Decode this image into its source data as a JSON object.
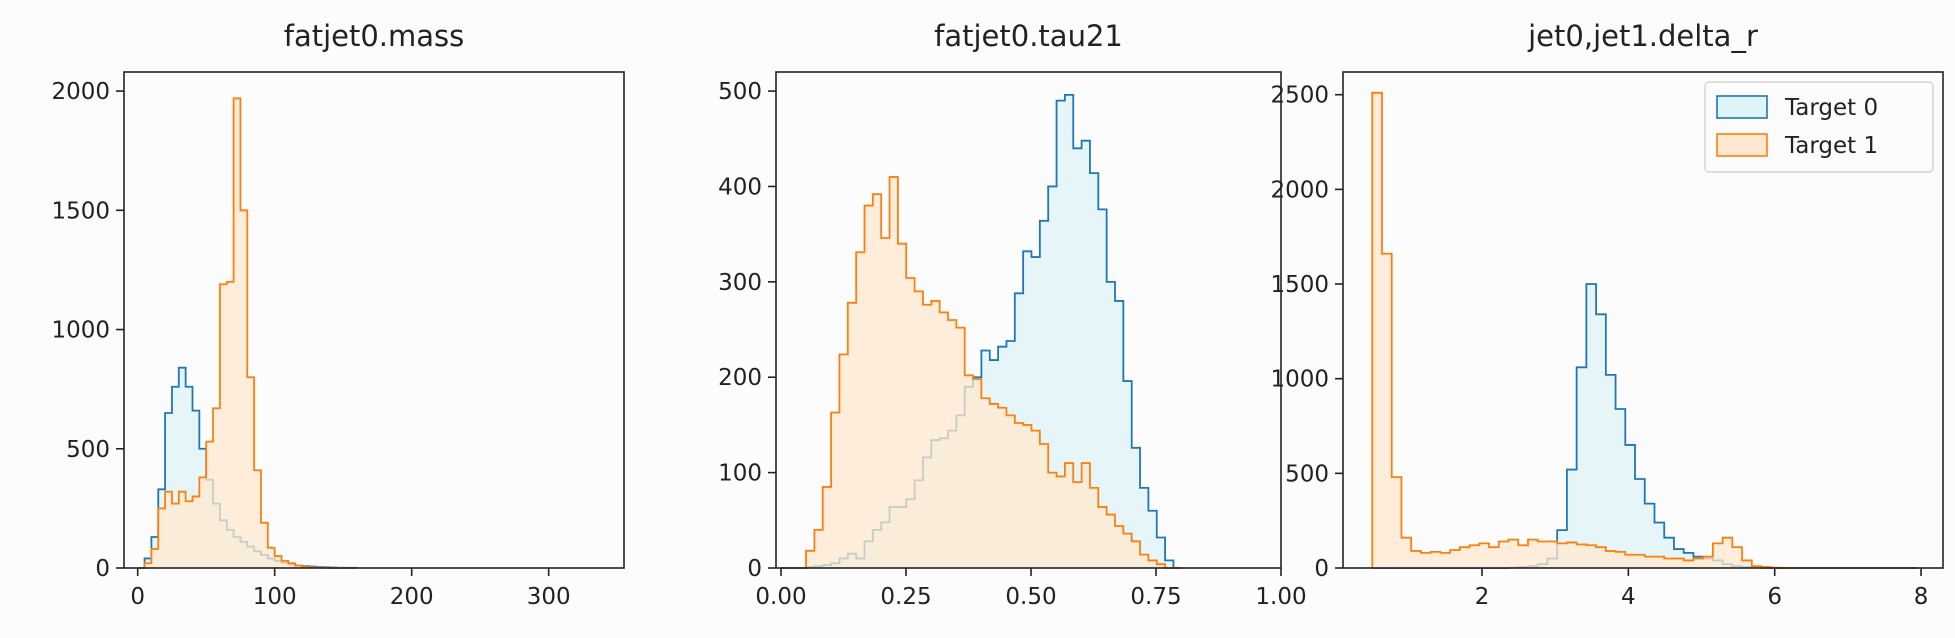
{
  "colors": {
    "target0": "#1f77b4",
    "target1": "#ff7f0e",
    "target0_fill": "#dff4f7",
    "target1_fill": "#ffe8cf",
    "background": "#fcfcfc"
  },
  "chart_data": [
    {
      "type": "histogram",
      "title": "fatjet0.mass",
      "xlim": [
        -10,
        355
      ],
      "ylim": [
        0,
        2080
      ],
      "xticks": [
        0,
        100,
        200,
        300
      ],
      "xticklabels": [
        "0",
        "100",
        "200",
        "300"
      ],
      "yticks": [
        0,
        500,
        1000,
        1500,
        2000
      ],
      "yticklabels": [
        "0",
        "500",
        "1000",
        "1500",
        "2000"
      ],
      "series": [
        {
          "name": "Target 0",
          "bin_start": 0,
          "bin_width": 5,
          "values": [
            0,
            40,
            130,
            330,
            650,
            760,
            840,
            760,
            660,
            500,
            370,
            270,
            200,
            160,
            130,
            110,
            90,
            70,
            55,
            40,
            30,
            22,
            15,
            10,
            8,
            6,
            4,
            3,
            2,
            1,
            1,
            1
          ]
        },
        {
          "name": "Target 1",
          "bin_start": 0,
          "bin_width": 5,
          "values": [
            0,
            20,
            80,
            250,
            320,
            270,
            320,
            280,
            300,
            380,
            530,
            670,
            1190,
            1200,
            1970,
            1500,
            800,
            410,
            190,
            85,
            50,
            30,
            20,
            10,
            5,
            3,
            2,
            1,
            0,
            0,
            0,
            0
          ]
        }
      ],
      "legend": null
    },
    {
      "type": "histogram",
      "title": "fatjet0.tau21",
      "xlim": [
        -0.01,
        1.0
      ],
      "ylim": [
        0,
        520
      ],
      "xticks": [
        0.0,
        0.25,
        0.5,
        0.75,
        1.0
      ],
      "xticklabels": [
        "0.00",
        "0.25",
        "0.50",
        "0.75",
        "1.00"
      ],
      "yticks": [
        0,
        100,
        200,
        300,
        400,
        500
      ],
      "yticklabels": [
        "0",
        "100",
        "200",
        "300",
        "400",
        "500"
      ],
      "series": [
        {
          "name": "Target 0",
          "bin_start": 0.0,
          "bin_width": 0.0167,
          "values": [
            0,
            0,
            0,
            1,
            2,
            3,
            5,
            10,
            15,
            10,
            28,
            40,
            48,
            64,
            64,
            72,
            92,
            116,
            134,
            136,
            144,
            160,
            190,
            200,
            228,
            218,
            232,
            238,
            288,
            332,
            326,
            364,
            400,
            490,
            496,
            440,
            448,
            414,
            376,
            300,
            280,
            196,
            126,
            84,
            60,
            32,
            8,
            0
          ]
        },
        {
          "name": "Target 1",
          "bin_start": 0.0,
          "bin_width": 0.0167,
          "values": [
            0,
            0,
            0,
            18,
            40,
            85,
            163,
            224,
            278,
            331,
            380,
            392,
            346,
            410,
            340,
            304,
            290,
            276,
            280,
            268,
            260,
            252,
            202,
            198,
            178,
            172,
            168,
            160,
            152,
            150,
            144,
            130,
            100,
            96,
            110,
            90,
            110,
            84,
            64,
            56,
            44,
            36,
            28,
            14,
            8,
            4,
            0,
            0
          ]
        }
      ],
      "legend": null
    },
    {
      "type": "histogram",
      "title": "jet0,jet1.delta_r",
      "xlim": [
        0.1,
        8.3
      ],
      "ylim": [
        0,
        2620
      ],
      "xticks": [
        2,
        4,
        6,
        8
      ],
      "xticklabels": [
        "2",
        "4",
        "6",
        "8"
      ],
      "yticks": [
        0,
        500,
        1000,
        1500,
        2000,
        2500
      ],
      "yticklabels": [
        "0",
        "500",
        "1000",
        "1500",
        "2000",
        "2500"
      ],
      "series": [
        {
          "name": "Target 0",
          "bin_start": 0.5,
          "bin_width": 0.133,
          "values": [
            0,
            0,
            0,
            0,
            0,
            0,
            0,
            0,
            0,
            0,
            0,
            0,
            0,
            0,
            2,
            5,
            10,
            20,
            50,
            200,
            520,
            1060,
            1500,
            1340,
            1020,
            840,
            650,
            470,
            340,
            240,
            160,
            100,
            80,
            60,
            50,
            40,
            20,
            10,
            5,
            2,
            1,
            0,
            0,
            0,
            0,
            0,
            0,
            0,
            0,
            0,
            0,
            0,
            0,
            0,
            0,
            0
          ]
        },
        {
          "name": "Target 1",
          "bin_start": 0.5,
          "bin_width": 0.133,
          "values": [
            2510,
            1660,
            480,
            160,
            90,
            80,
            85,
            80,
            95,
            110,
            120,
            130,
            110,
            140,
            150,
            120,
            150,
            140,
            140,
            130,
            135,
            125,
            120,
            110,
            90,
            85,
            70,
            70,
            60,
            60,
            50,
            50,
            40,
            50,
            60,
            130,
            160,
            110,
            40,
            10,
            5,
            2,
            0,
            0,
            0,
            0,
            0,
            0,
            0,
            0,
            0,
            0,
            0,
            0,
            0,
            0
          ]
        }
      ],
      "legend": {
        "entries": [
          "Target 0",
          "Target 1"
        ],
        "placement": "upper right"
      }
    }
  ]
}
